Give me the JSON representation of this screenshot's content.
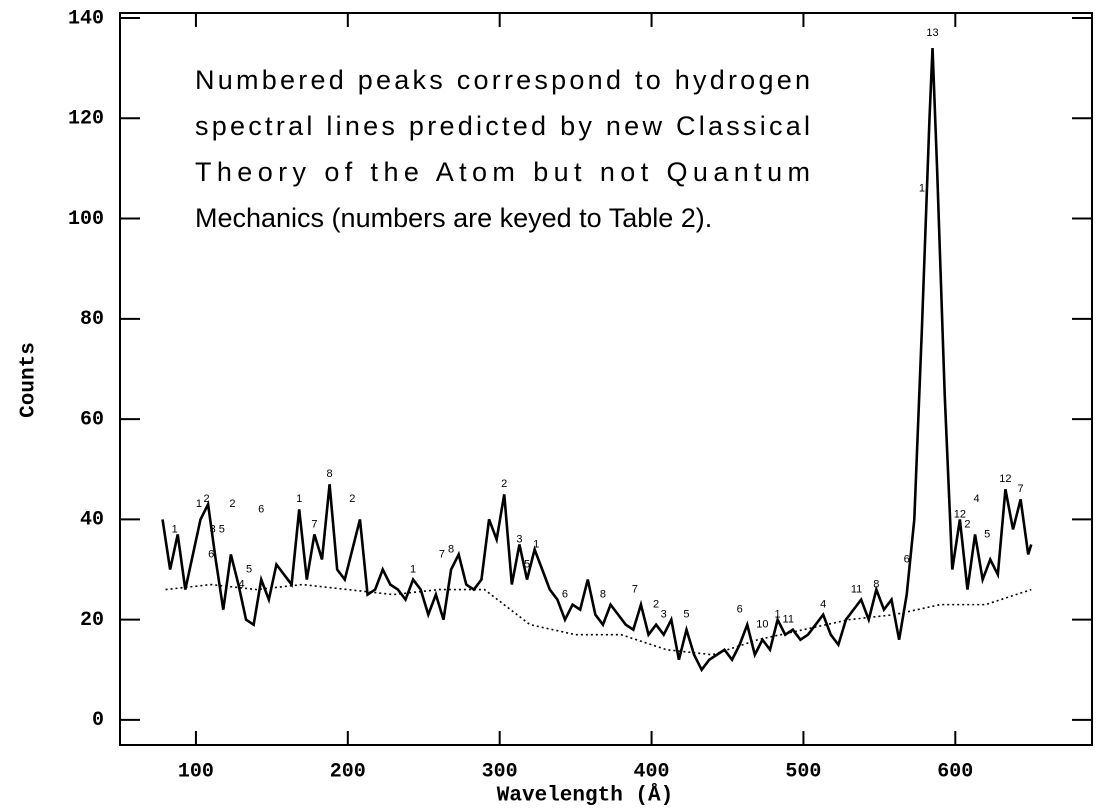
{
  "chart_data": {
    "type": "line",
    "xlabel": "Wavelength (Å)",
    "ylabel": "Counts",
    "annotation": [
      "Numbered peaks correspond to hydrogen",
      "spectral lines predicted by new Classical",
      "Theory of the Atom but not Quantum",
      "Mechanics (numbers are keyed to Table 2)."
    ],
    "xlim": [
      50,
      690
    ],
    "ylim": [
      -5,
      141
    ],
    "xticks": [
      100,
      200,
      300,
      400,
      500,
      600
    ],
    "yticks": [
      0,
      20,
      40,
      60,
      80,
      100,
      120,
      140
    ],
    "series": [
      {
        "color": "#000000",
        "style": "solid",
        "x": [
          78,
          83,
          88,
          93,
          98,
          103,
          108,
          113,
          118,
          123,
          128,
          133,
          138,
          143,
          148,
          153,
          158,
          163,
          168,
          173,
          178,
          183,
          188,
          193,
          198,
          203,
          208,
          213,
          218,
          223,
          228,
          233,
          238,
          243,
          248,
          253,
          258,
          263,
          268,
          273,
          278,
          283,
          288,
          293,
          298,
          303,
          308,
          313,
          318,
          323,
          328,
          333,
          338,
          343,
          348,
          353,
          358,
          363,
          368,
          373,
          378,
          383,
          388,
          393,
          398,
          403,
          408,
          413,
          418,
          423,
          428,
          433,
          438,
          443,
          448,
          453,
          458,
          463,
          468,
          473,
          478,
          483,
          488,
          493,
          498,
          503,
          508,
          513,
          518,
          523,
          528,
          533,
          538,
          543,
          548,
          553,
          558,
          563,
          568,
          573,
          578,
          583,
          585,
          588,
          593,
          598,
          603,
          608,
          613,
          618,
          623,
          628,
          633,
          638,
          643,
          648,
          650
        ],
        "values": [
          40,
          30,
          37,
          26,
          33,
          40,
          43,
          32,
          22,
          33,
          27,
          20,
          19,
          28,
          24,
          31,
          29,
          27,
          42,
          28,
          37,
          32,
          47,
          30,
          28,
          34,
          40,
          25,
          26,
          30,
          27,
          26,
          24,
          28,
          26,
          21,
          25,
          20,
          30,
          33,
          27,
          26,
          28,
          40,
          36,
          45,
          27,
          35,
          28,
          34,
          30,
          26,
          24,
          20,
          23,
          22,
          28,
          21,
          19,
          23,
          21,
          19,
          18,
          23,
          17,
          19,
          17,
          20,
          12,
          18,
          13,
          10,
          12,
          13,
          14,
          12,
          15,
          19,
          13,
          16,
          14,
          20,
          17,
          18,
          16,
          17,
          19,
          21,
          17,
          15,
          20,
          22,
          24,
          20,
          26,
          22,
          24,
          16,
          25,
          40,
          78,
          120,
          134,
          110,
          65,
          30,
          40,
          26,
          37,
          28,
          32,
          29,
          46,
          38,
          44,
          33,
          35
        ]
      },
      {
        "color": "#000000",
        "style": "dotted",
        "x": [
          80,
          110,
          140,
          170,
          200,
          230,
          260,
          290,
          320,
          350,
          380,
          410,
          440,
          470,
          500,
          530,
          560,
          590,
          620,
          650
        ],
        "values": [
          26,
          27,
          26,
          27,
          26,
          25,
          26,
          26,
          19,
          17,
          17,
          14,
          13,
          16,
          18,
          20,
          21,
          23,
          23,
          26
        ]
      }
    ],
    "peak_labels": [
      {
        "text": "1",
        "x": 86,
        "y": 38
      },
      {
        "text": "1",
        "x": 102,
        "y": 43
      },
      {
        "text": "2",
        "x": 107,
        "y": 44
      },
      {
        "text": "3",
        "x": 111,
        "y": 38
      },
      {
        "text": "5",
        "x": 117,
        "y": 38
      },
      {
        "text": "6",
        "x": 110,
        "y": 33
      },
      {
        "text": "2",
        "x": 124,
        "y": 43
      },
      {
        "text": "4",
        "x": 130,
        "y": 27
      },
      {
        "text": "5",
        "x": 135,
        "y": 30
      },
      {
        "text": "6",
        "x": 143,
        "y": 42
      },
      {
        "text": "1",
        "x": 168,
        "y": 44
      },
      {
        "text": "7",
        "x": 178,
        "y": 39
      },
      {
        "text": "8",
        "x": 188,
        "y": 49
      },
      {
        "text": "2",
        "x": 203,
        "y": 44
      },
      {
        "text": "1",
        "x": 243,
        "y": 30
      },
      {
        "text": "7",
        "x": 262,
        "y": 33
      },
      {
        "text": "8",
        "x": 268,
        "y": 34
      },
      {
        "text": "2",
        "x": 303,
        "y": 47
      },
      {
        "text": "3",
        "x": 313,
        "y": 36
      },
      {
        "text": "1",
        "x": 324,
        "y": 35
      },
      {
        "text": "5",
        "x": 318,
        "y": 31
      },
      {
        "text": "6",
        "x": 343,
        "y": 25
      },
      {
        "text": "8",
        "x": 368,
        "y": 25
      },
      {
        "text": "7",
        "x": 389,
        "y": 26
      },
      {
        "text": "2",
        "x": 403,
        "y": 23
      },
      {
        "text": "3",
        "x": 408,
        "y": 21
      },
      {
        "text": "5",
        "x": 423,
        "y": 21
      },
      {
        "text": "6",
        "x": 458,
        "y": 22
      },
      {
        "text": "10",
        "x": 473,
        "y": 19
      },
      {
        "text": "1",
        "x": 483,
        "y": 21
      },
      {
        "text": "11",
        "x": 490,
        "y": 20
      },
      {
        "text": "4",
        "x": 513,
        "y": 23
      },
      {
        "text": "11",
        "x": 535,
        "y": 26
      },
      {
        "text": "8",
        "x": 548,
        "y": 27
      },
      {
        "text": "6",
        "x": 568,
        "y": 32
      },
      {
        "text": "13",
        "x": 585,
        "y": 137
      },
      {
        "text": "1",
        "x": 578,
        "y": 106
      },
      {
        "text": "12",
        "x": 603,
        "y": 41
      },
      {
        "text": "2",
        "x": 608,
        "y": 39
      },
      {
        "text": "4",
        "x": 614,
        "y": 44
      },
      {
        "text": "5",
        "x": 621,
        "y": 37
      },
      {
        "text": "12",
        "x": 633,
        "y": 48
      },
      {
        "text": "7",
        "x": 643,
        "y": 46
      }
    ]
  }
}
